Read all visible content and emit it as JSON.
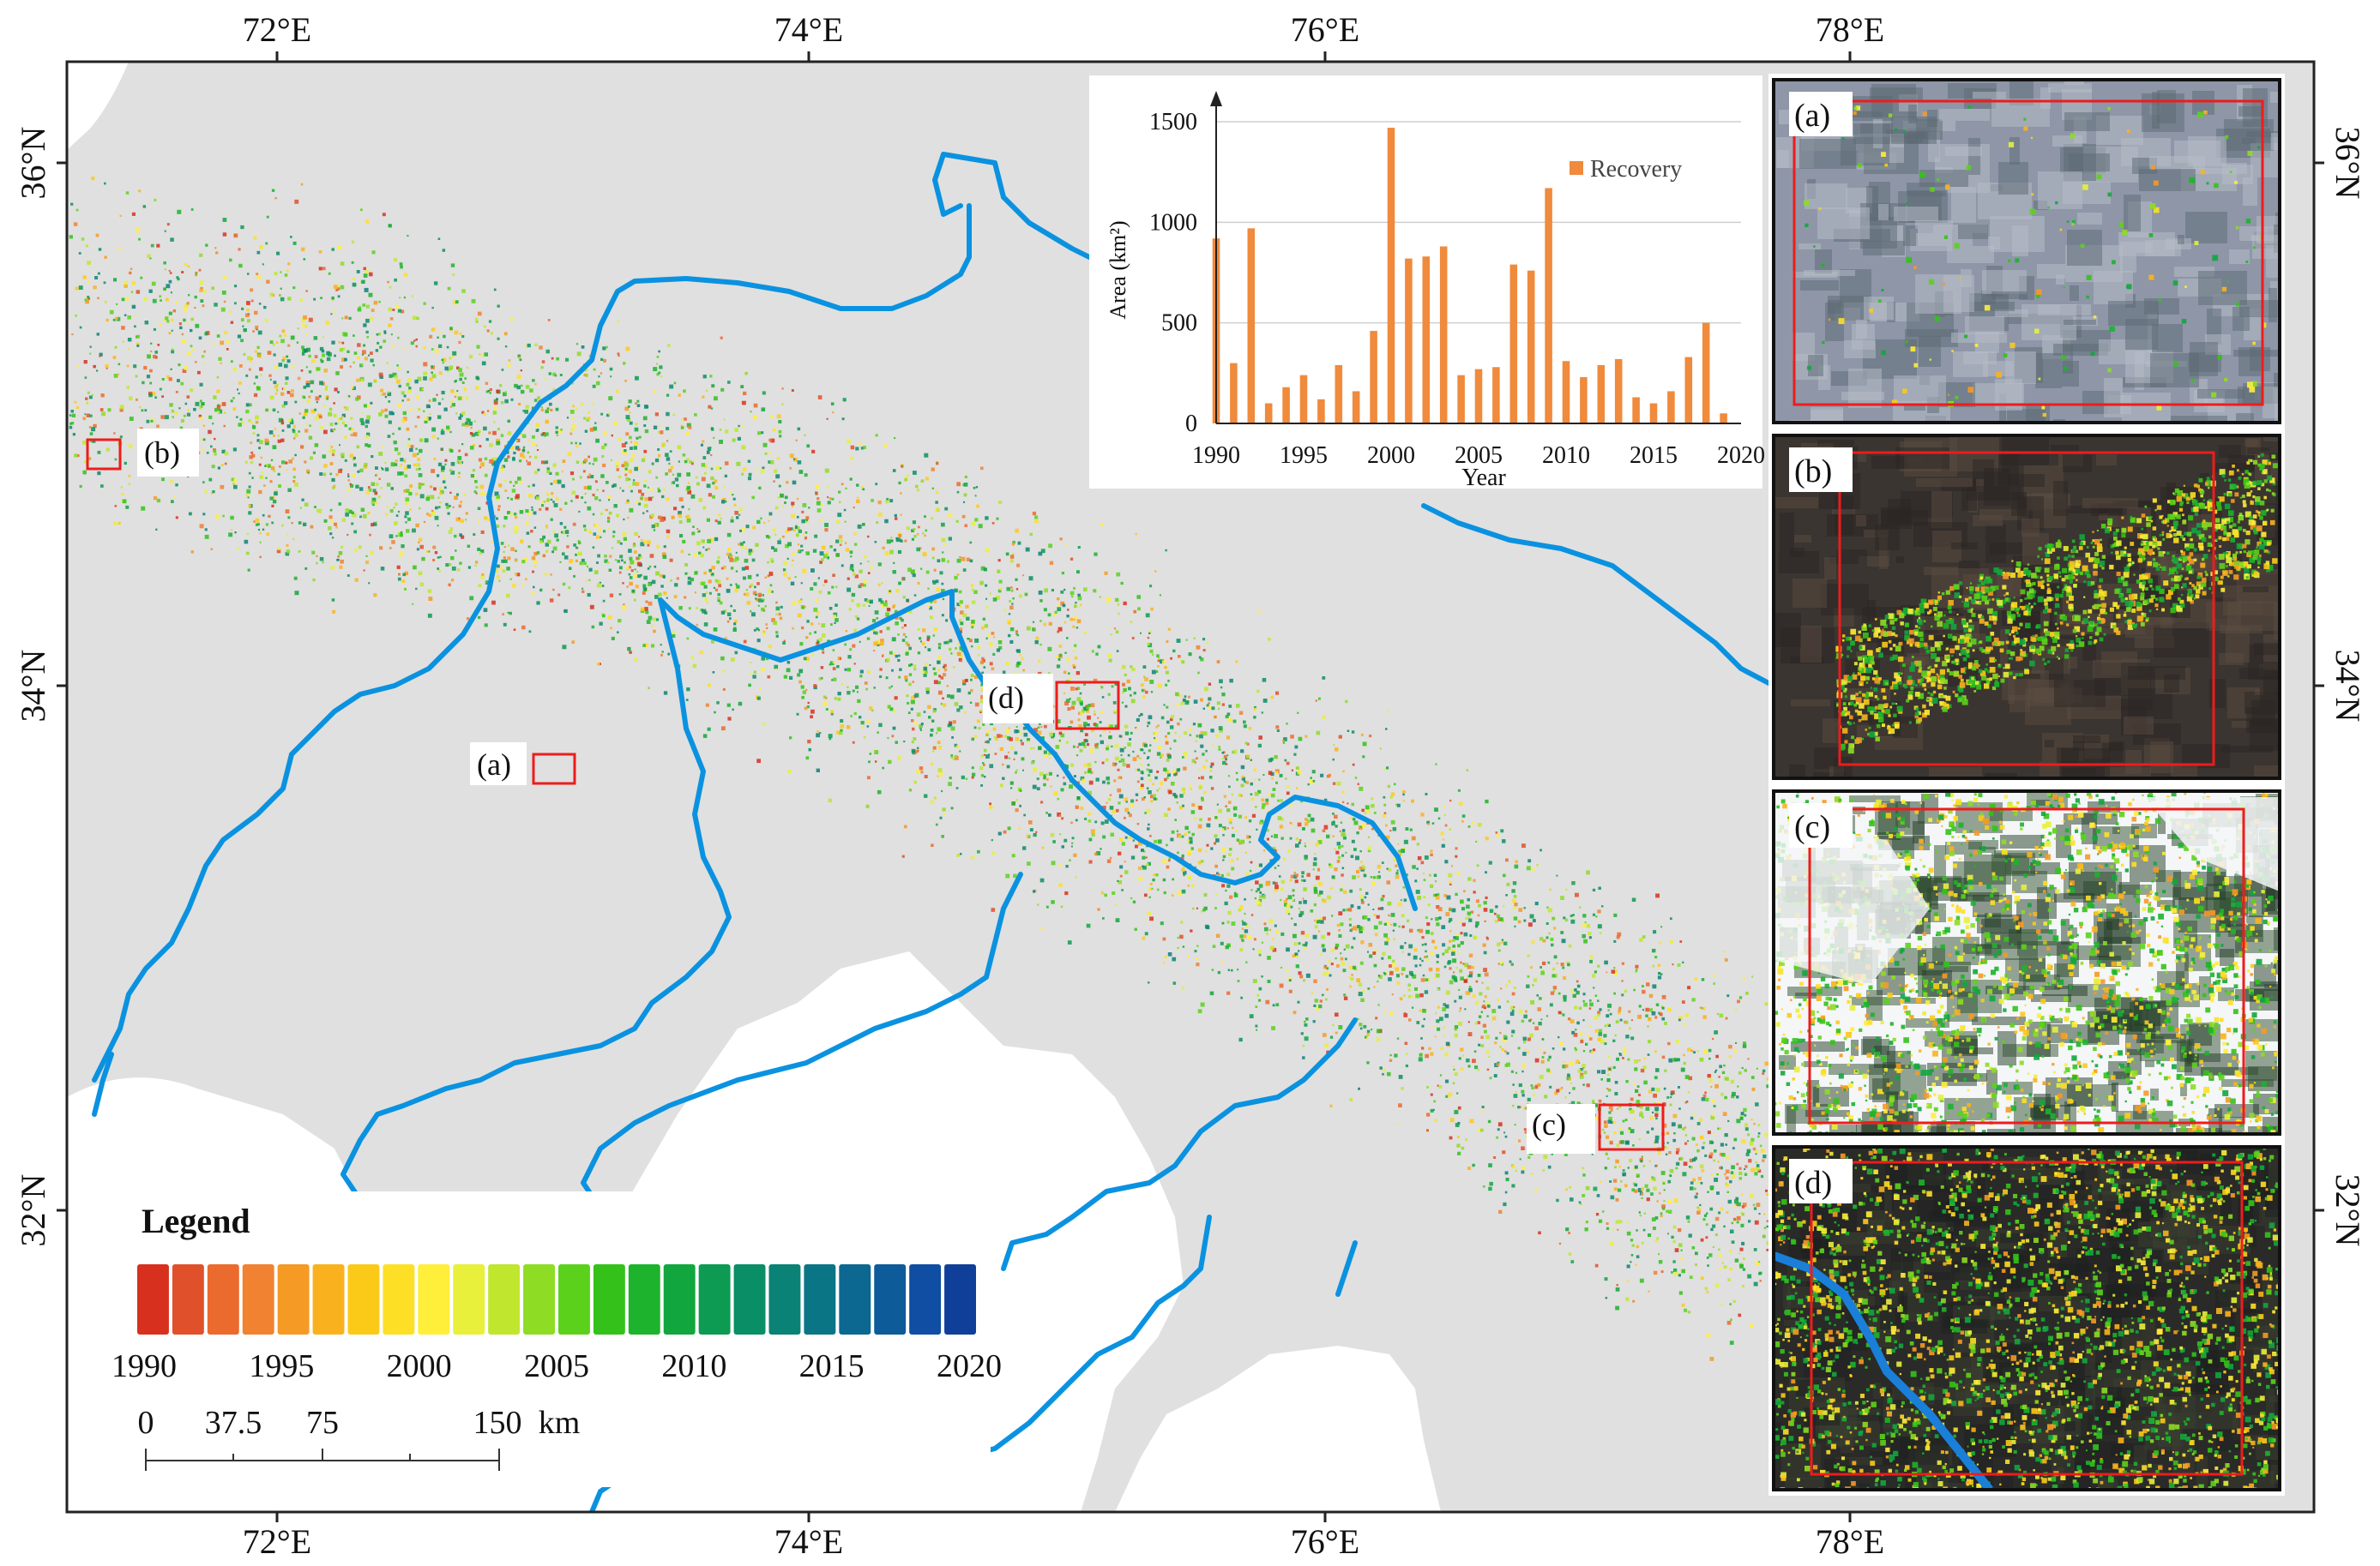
{
  "map": {
    "lon_ticks": [
      "72°E",
      "74°E",
      "76°E",
      "78°E"
    ],
    "lat_ticks": [
      "36°N",
      "34°N",
      "32°N"
    ],
    "site_labels": [
      "(a)",
      "(b)",
      "(c)",
      "(d)"
    ],
    "colors": {
      "land": "#e0e0e0",
      "outside": "#ffffff",
      "river": "#0a92e0",
      "marker": "#ee1c1c"
    },
    "river_icon": "river-lines"
  },
  "legend": {
    "title": "Legend",
    "year_labels": [
      "1990",
      "1995",
      "2000",
      "2005",
      "2010",
      "2015",
      "2020"
    ],
    "year_range": [
      1990,
      2020
    ],
    "palette": [
      "#d7301f",
      "#e0502a",
      "#eb6a2e",
      "#f08231",
      "#f59a24",
      "#f9b21e",
      "#fbca19",
      "#fde025",
      "#ffee3a",
      "#e8f03b",
      "#c0e62e",
      "#8edc23",
      "#5cd11c",
      "#34c21a",
      "#1db32c",
      "#12a63e",
      "#0d9a52",
      "#0a8e65",
      "#0a8275",
      "#0a7585",
      "#0c6890",
      "#0e5b9a",
      "#0f4ea2",
      "#103f9a"
    ],
    "scale_labels": [
      "0",
      "37.5",
      "75",
      "150"
    ],
    "scale_unit": "km"
  },
  "chart_data": {
    "type": "bar",
    "x": [
      1990,
      1991,
      1992,
      1993,
      1994,
      1995,
      1996,
      1997,
      1998,
      1999,
      2000,
      2001,
      2002,
      2003,
      2004,
      2005,
      2006,
      2007,
      2008,
      2009,
      2010,
      2011,
      2012,
      2013,
      2014,
      2015,
      2016,
      2017,
      2018,
      2019
    ],
    "series": [
      {
        "name": "Recovery",
        "values": [
          920,
          300,
          970,
          100,
          180,
          240,
          120,
          290,
          160,
          460,
          1470,
          820,
          830,
          880,
          240,
          270,
          280,
          790,
          760,
          1170,
          310,
          230,
          290,
          320,
          130,
          100,
          160,
          330,
          500,
          50
        ],
        "color": "#f08a3c"
      }
    ],
    "xticks": [
      "1990",
      "1995",
      "2000",
      "2005",
      "2010",
      "2015",
      "2020"
    ],
    "yticks": [
      "0",
      "500",
      "1000",
      "1500"
    ],
    "xlabel": "Year",
    "ylabel": "Area (km²)",
    "xlim": [
      1990,
      2020
    ],
    "ylim": [
      0,
      1500
    ],
    "grid": "horizontal",
    "legend_position": "top-right"
  },
  "insets": [
    {
      "label": "(a)",
      "scene": "urban"
    },
    {
      "label": "(b)",
      "scene": "mountain-slope"
    },
    {
      "label": "(c)",
      "scene": "snow-forest"
    },
    {
      "label": "(d)",
      "scene": "river-valley"
    }
  ]
}
